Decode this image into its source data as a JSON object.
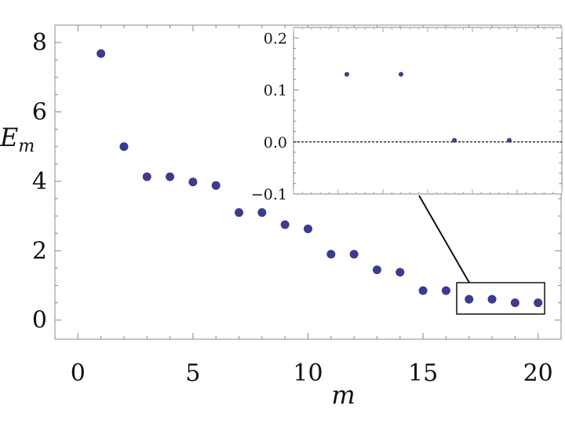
{
  "chart_data": [
    {
      "type": "scatter",
      "title": "",
      "xlabel": "m",
      "ylabel": "E",
      "ylabel_subscript": "m",
      "xlim": [
        -1,
        21
      ],
      "ylim": [
        -0.55,
        8.5
      ],
      "xticks": [
        0,
        5,
        10,
        15,
        20
      ],
      "yticks": [
        0,
        2,
        4,
        6,
        8
      ],
      "grid": false,
      "legend": "none",
      "marker_color": "#3b3b8f",
      "series": [
        {
          "x": [
            1,
            2,
            3,
            4,
            5,
            6,
            7,
            8,
            9,
            10,
            11,
            12,
            13,
            14,
            15,
            16,
            17,
            18,
            19,
            20
          ],
          "y": [
            7.68,
            5.0,
            4.13,
            4.13,
            3.98,
            3.88,
            3.1,
            3.1,
            2.75,
            2.63,
            1.9,
            1.9,
            1.45,
            1.38,
            0.85,
            0.85,
            0.6,
            0.6,
            0.5,
            0.5
          ]
        }
      ]
    },
    {
      "type": "scatter",
      "title": "",
      "xlabel": "",
      "ylabel": "",
      "ylim": [
        -0.1,
        0.22
      ],
      "yticks": [
        -0.1,
        0.0,
        0.1,
        0.2
      ],
      "ytick_labels": [
        "−0.1",
        "0.0",
        "0.1",
        "0.2"
      ],
      "reference_line_y": 0.0,
      "grid": false,
      "legend": "none",
      "marker_color": "#3b3b8f",
      "series": [
        {
          "x": [
            17,
            18,
            19,
            20
          ],
          "y": [
            0.13,
            0.13,
            0.003,
            0.003
          ]
        }
      ]
    }
  ]
}
